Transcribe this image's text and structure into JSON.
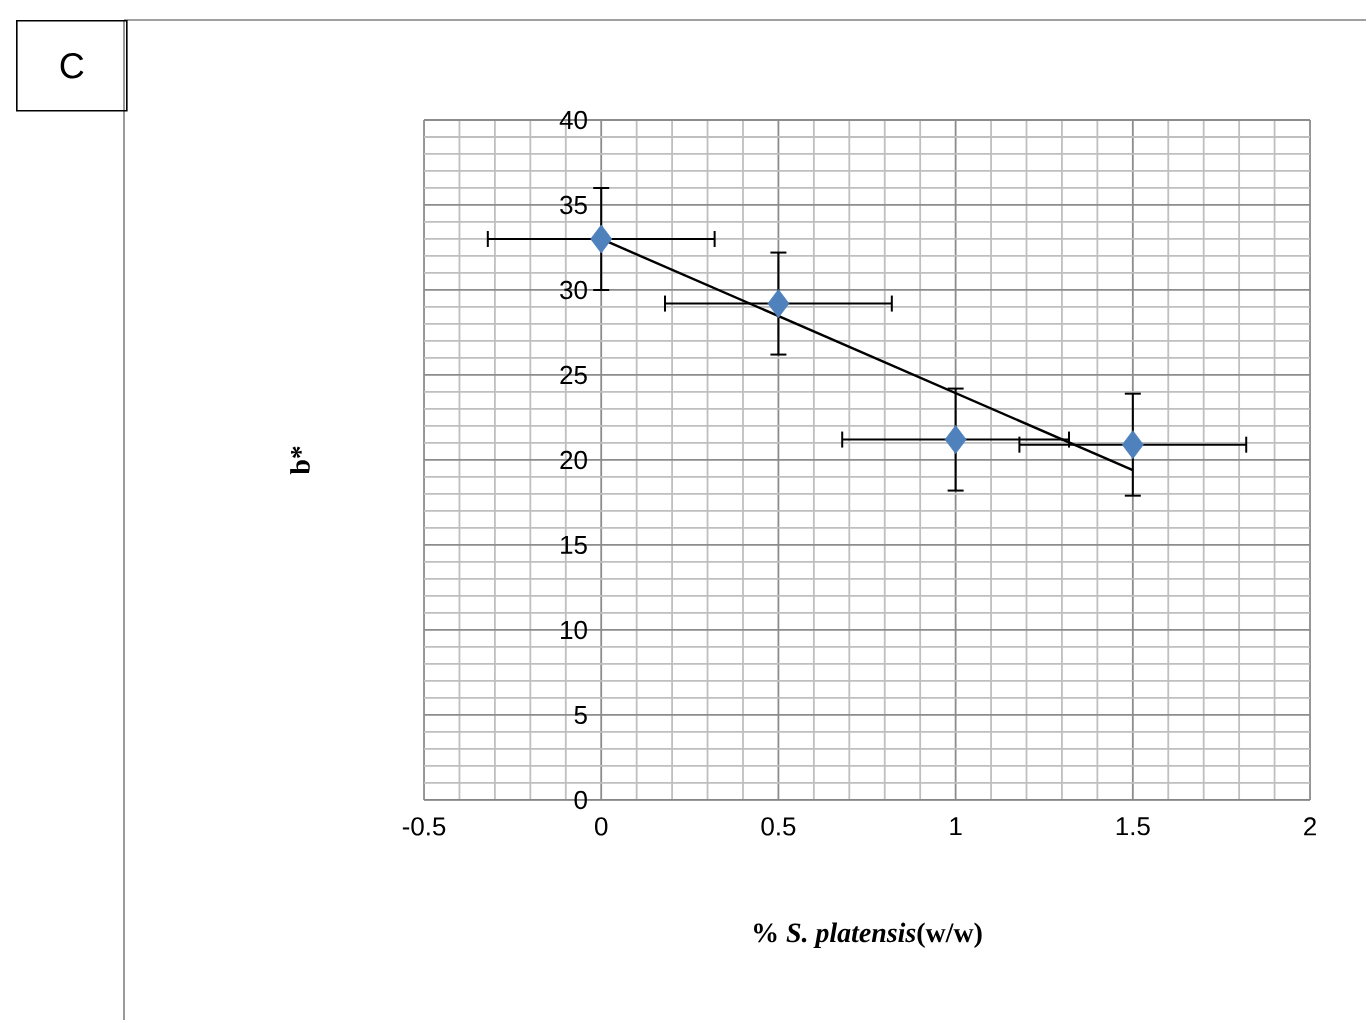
{
  "chart_data": {
    "type": "scatter",
    "xlabel": "% *S. platensis*(w/w)",
    "ylabel": "b*",
    "annotations": [
      "C"
    ],
    "xlim": [
      -0.5,
      2
    ],
    "xticks": [
      -0.5,
      0,
      0.5,
      1,
      1.5,
      2
    ],
    "ylim": [
      0,
      40
    ],
    "yticks": [
      0,
      5,
      10,
      15,
      20,
      25,
      30,
      35,
      40
    ],
    "grid": true,
    "marker": "diamond",
    "series": [
      {
        "color": "#4f81bd",
        "x": [
          0,
          0.5,
          1,
          1.5
        ],
        "values": [
          33,
          29.2,
          21.2,
          20.9
        ],
        "errors": [
          3,
          3,
          3,
          3
        ],
        "xerrors": [
          0.32,
          0.32,
          0.32,
          0.32
        ]
      },
      {
        "type": "line",
        "marker": "none",
        "color": "#000000",
        "x": [
          0,
          1.5
        ],
        "values": [
          33,
          19.4
        ]
      }
    ]
  }
}
